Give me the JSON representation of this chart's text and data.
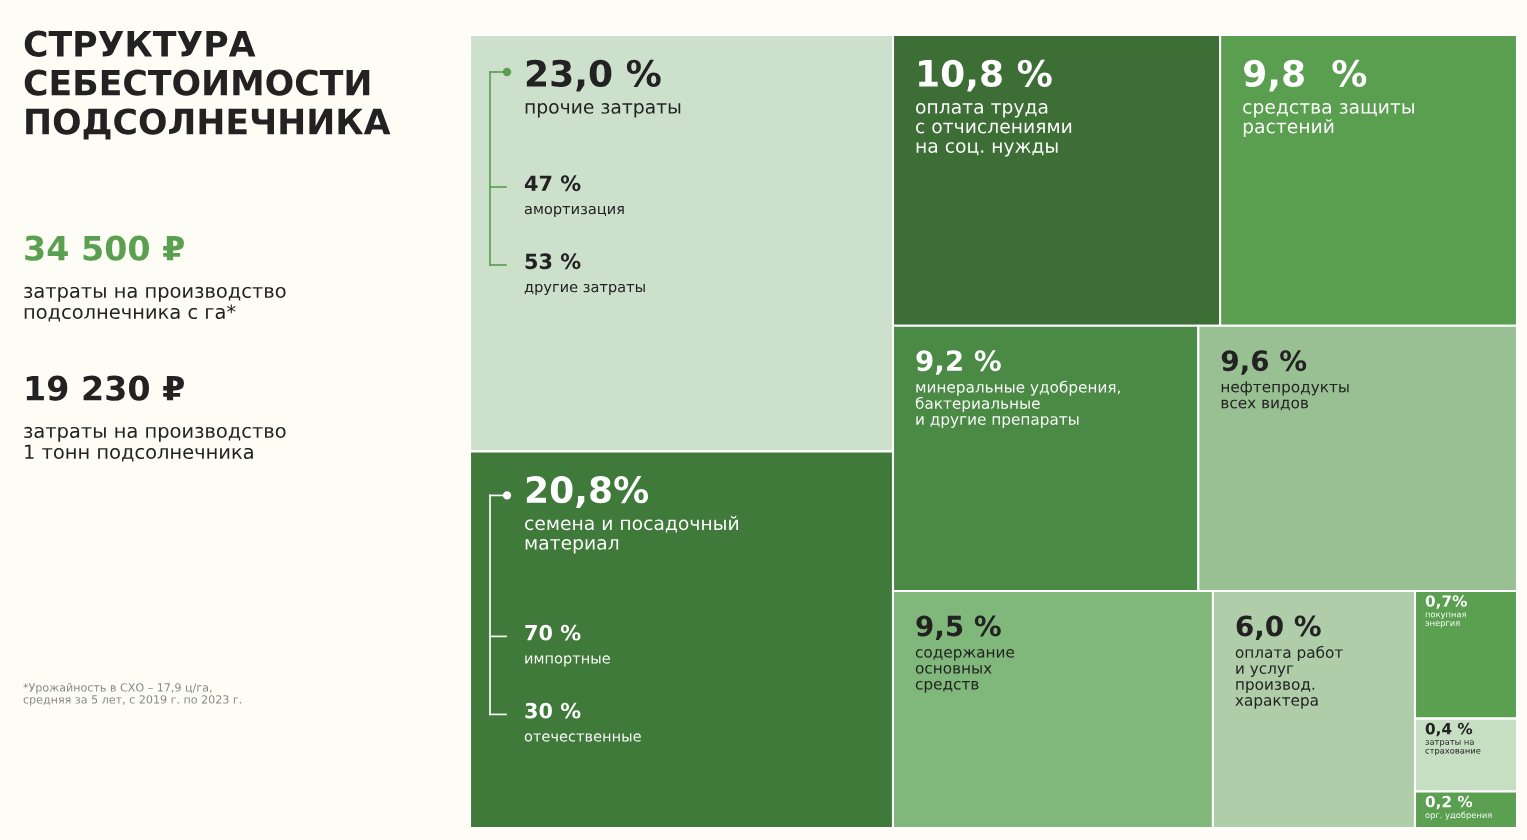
{
  "chart_data": {
    "type": "other",
    "title": "СТРУКТУРА\nСЕБЕСТОИМОСТИ\nПОДСОЛНЕЧНИКА",
    "categories": [
      "прочие затраты",
      "семена и посадочный\nматериал",
      "оплата труда\nс отчислениями\nна соц. нужды",
      "средства защиты\nрастений",
      "минеральные удобрения,\nбактериальные\nи другие препараты",
      "нефтепродукты\nвсех видов",
      "содержание\nосновных\nсредств",
      "оплата работ\nи услуг\nпроизвод.\nхарактера",
      "покупная\nэнергия",
      "затраты на\nстрахование",
      "орг. удобрения"
    ],
    "values": [
      23.0,
      20.8,
      10.8,
      9.8,
      9.2,
      9.6,
      9.5,
      6.0,
      0.7,
      0.4,
      0.2
    ],
    "value_labels": [
      "23,0 %",
      "20,8%",
      "10,8 %",
      "9,8  %",
      "9,2 %",
      "9,6 %",
      "9,5 %",
      "6,0 %",
      "0,7%",
      "0,4 %",
      "0,2 %"
    ],
    "colors": [
      "#cde0cc",
      "#3f7a3a",
      "#3d6e35",
      "#5a9f50",
      "#4a8a45",
      "#99c092",
      "#80b77a",
      "#aecda8",
      "#5aa050",
      "#c6dec2",
      "#5aa050"
    ],
    "annotations": [
      "34 500 ₽",
      "затраты на производство\nподсолнечника с га*",
      "19 230 ₽",
      "затраты на производство\n1 тонн подсолнечника",
      "*Урожайность в СХО – 17,9 ц/га,\nсредняя за 5 лет, с 2019 г. по 2023 г.",
      "47 %",
      "амортизация",
      "53 %",
      "другие затраты",
      "70 %",
      "импортные",
      "30 %",
      "отечественные"
    ]
  }
}
